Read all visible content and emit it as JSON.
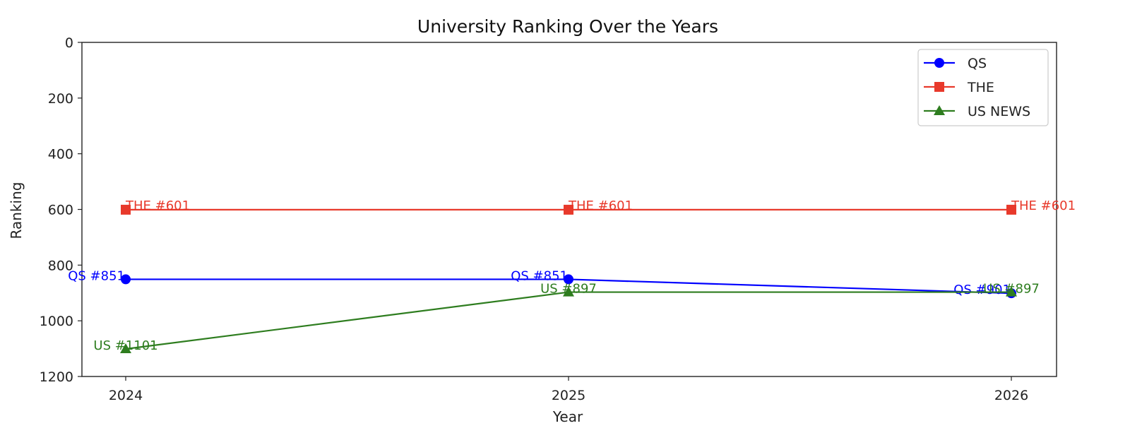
{
  "chart_data": {
    "type": "line",
    "title": "University Ranking Over the Years",
    "xlabel": "Year",
    "ylabel": "Ranking",
    "x": [
      "2024",
      "2025",
      "2026"
    ],
    "ylim": [
      0,
      1200
    ],
    "y_inverted": true,
    "yticks": [
      0,
      200,
      400,
      600,
      800,
      1000,
      1200
    ],
    "grid": false,
    "legend_position": "top-right",
    "series": [
      {
        "name": "QS",
        "marker": "circle",
        "color": "#0000ff",
        "values": [
          851,
          851,
          901
        ],
        "labels": [
          "QS #851",
          "QS #851",
          "QS #901"
        ]
      },
      {
        "name": "THE",
        "marker": "square",
        "color": "#e8392b",
        "values": [
          601,
          601,
          601
        ],
        "labels": [
          "THE #601",
          "THE #601",
          "THE #601"
        ]
      },
      {
        "name": "US NEWS",
        "marker": "triangle",
        "color": "#2e7d1f",
        "values": [
          1101,
          897,
          897
        ],
        "labels": [
          "US #1101",
          "US #897",
          "US #897"
        ]
      }
    ]
  }
}
